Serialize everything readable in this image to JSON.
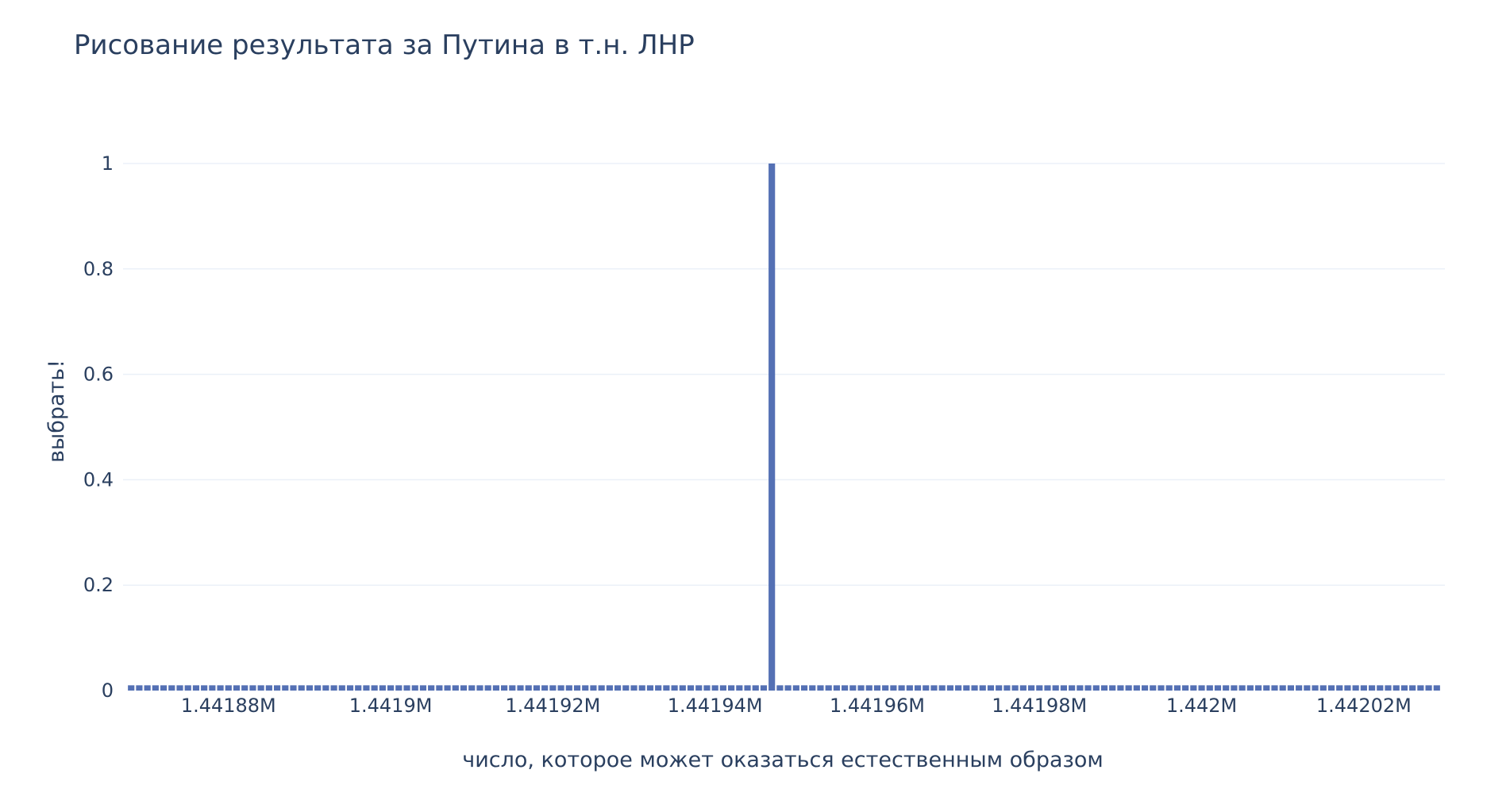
{
  "chart_data": {
    "type": "bar",
    "title": "Рисование результата за Путина в т.н. ЛНР",
    "xlabel": "число, которое может оказаться естественным образом",
    "ylabel": "выбрать!",
    "xlim": [
      1441867,
      1442030
    ],
    "ylim": [
      0,
      1
    ],
    "x_ticks": [
      1441880,
      1441900,
      1441920,
      1441940,
      1441960,
      1441980,
      1442000,
      1442020
    ],
    "x_tick_labels": [
      "1.44188M",
      "1.4419M",
      "1.44192M",
      "1.44194M",
      "1.44196M",
      "1.44198M",
      "1.442M",
      "1.44202M"
    ],
    "y_ticks": [
      0,
      0.2,
      0.4,
      0.6,
      0.8,
      1
    ],
    "y_tick_labels": [
      "0",
      "0.2",
      "0.4",
      "0.6",
      "0.8",
      "1"
    ],
    "grid": true,
    "color": "#5470b4",
    "x_start": 1441868,
    "x_end": 1442029,
    "highlight_x": 1441947,
    "highlight_value": 1,
    "baseline_value": 0.01
  }
}
